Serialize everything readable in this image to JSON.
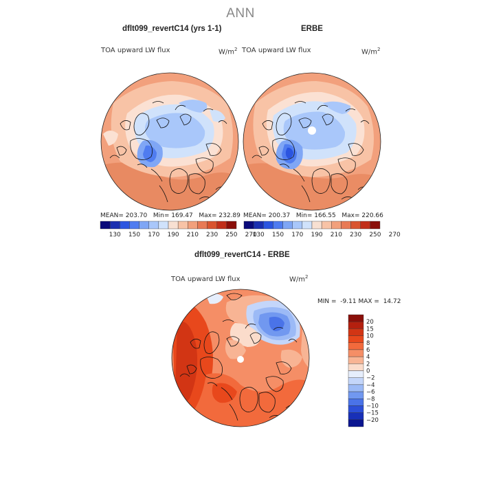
{
  "figure": {
    "title": "ANN"
  },
  "panels": [
    {
      "title": "dflt099_revertC14 (yrs 1-1)",
      "variable": "TOA upward LW flux",
      "units": "W/m",
      "units_exp": "2",
      "stats": {
        "mean_label": "MEAN=",
        "mean": "203.70",
        "min_label": "Min=",
        "min": "169.47",
        "max_label": "Max=",
        "max": "232.89"
      }
    },
    {
      "title": "ERBE",
      "variable": "TOA upward LW flux",
      "units": "W/m",
      "units_exp": "2",
      "stats": {
        "mean_label": "MEAN=",
        "mean": "200.37",
        "min_label": "Min=",
        "min": "166.55",
        "max_label": "Max=",
        "max": "220.66"
      }
    },
    {
      "title": "dflt099_revertC14 - ERBE",
      "variable": "TOA upward LW flux",
      "units": "W/m",
      "units_exp": "2",
      "stats": {
        "min_label": "MIN =",
        "min": "-9.11",
        "max_label": "MAX =",
        "max": "14.72"
      }
    }
  ],
  "chart_data": [
    {
      "type": "heatmap",
      "projection": "north polar stereographic",
      "title": "dflt099_revertC14 (yrs 1-1)",
      "colorbar": {
        "orientation": "horizontal",
        "levels": [
          130,
          150,
          170,
          190,
          210,
          230,
          250,
          270
        ],
        "level_labels": [
          "130",
          "150",
          "170",
          "190",
          "210",
          "230",
          "250",
          "270"
        ],
        "colors": [
          "#0a0a7a",
          "#1a2fb0",
          "#2b55e0",
          "#4f7cf0",
          "#7fa6f5",
          "#a9c7fa",
          "#d0e2fb",
          "#f8e0d2",
          "#f8c3a6",
          "#f2a07c",
          "#e87a55",
          "#d9542f",
          "#c12f1a",
          "#8a0f0a"
        ]
      },
      "mean": 203.7,
      "min": 169.47,
      "max": 232.89
    },
    {
      "type": "heatmap",
      "projection": "north polar stereographic",
      "title": "ERBE",
      "colorbar": {
        "orientation": "horizontal",
        "levels": [
          130,
          150,
          170,
          190,
          210,
          230,
          250,
          270
        ],
        "level_labels": [
          "130",
          "150",
          "170",
          "190",
          "210",
          "230",
          "250",
          "270"
        ],
        "colors": [
          "#0a0a7a",
          "#1a2fb0",
          "#2b55e0",
          "#4f7cf0",
          "#7fa6f5",
          "#a9c7fa",
          "#d0e2fb",
          "#f8e0d2",
          "#f8c3a6",
          "#f2a07c",
          "#e87a55",
          "#d9542f",
          "#c12f1a",
          "#8a0f0a"
        ]
      },
      "mean": 200.37,
      "min": 166.55,
      "max": 220.66
    },
    {
      "type": "heatmap",
      "projection": "north polar stereographic",
      "title": "dflt099_revertC14 - ERBE",
      "colorbar": {
        "orientation": "vertical",
        "levels": [
          20,
          15,
          10,
          8,
          6,
          4,
          2,
          0,
          -2,
          -4,
          -6,
          -8,
          -10,
          -15,
          -20
        ],
        "level_labels": [
          "20",
          "15",
          "10",
          "8",
          "6",
          "4",
          "2",
          "0",
          "−2",
          "−4",
          "−6",
          "−8",
          "−10",
          "−15",
          "−20"
        ],
        "colors": [
          "#8a0f0a",
          "#b4200f",
          "#d23514",
          "#e8481c",
          "#f26a3c",
          "#f58e66",
          "#f8b494",
          "#fbdccb",
          "#e6eefc",
          "#c4d6fa",
          "#9cbaf6",
          "#7198f0",
          "#4a73e8",
          "#2c4fd8",
          "#1830b8",
          "#0a1590"
        ]
      },
      "min": -9.11,
      "max": 14.72
    }
  ]
}
